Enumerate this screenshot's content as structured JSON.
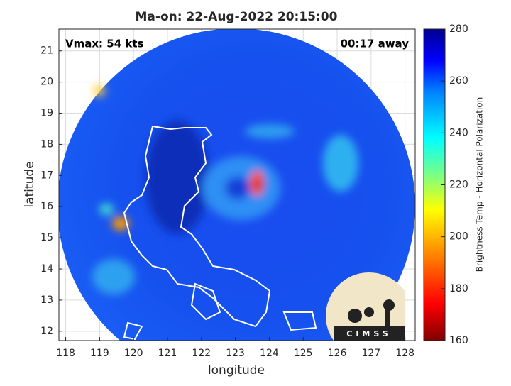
{
  "chart_data": {
    "type": "map",
    "title": "Ma-on: 22-Aug-2022 20:15:00",
    "xlabel": "longitude",
    "ylabel": "latitude",
    "xlim": [
      117.8,
      128.3
    ],
    "ylim": [
      11.7,
      21.7
    ],
    "xticks": [
      118,
      119,
      120,
      121,
      122,
      123,
      124,
      125,
      126,
      127,
      128
    ],
    "yticks": [
      12,
      13,
      14,
      15,
      16,
      17,
      18,
      19,
      20,
      21
    ],
    "grid": true,
    "annotations": [
      "Vmax: 54 kts",
      "00:17 away"
    ],
    "colorbar": {
      "label": "Brightness Temp - Horizontal Polarization",
      "lim": [
        160,
        280
      ],
      "ticks": [
        160,
        180,
        200,
        220,
        240,
        260,
        280
      ]
    },
    "logo": "CIMSS"
  }
}
